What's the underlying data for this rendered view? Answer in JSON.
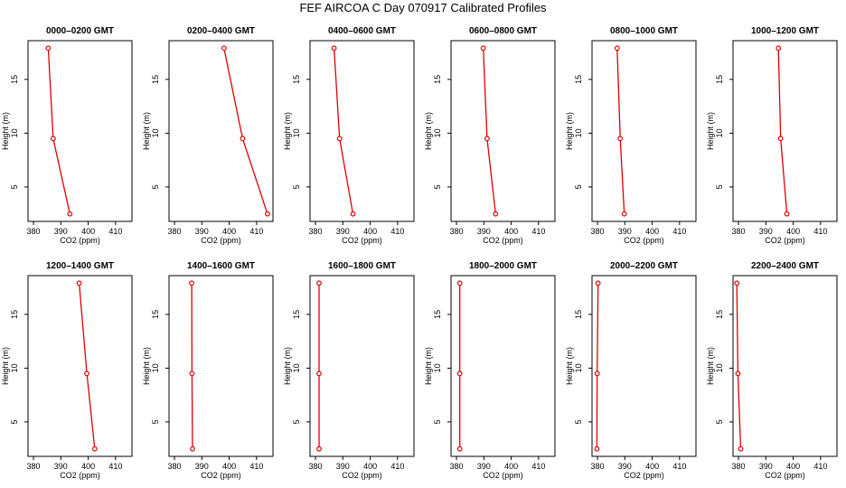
{
  "figure": {
    "title": "FEF AIRCOA C  Day 070917  Calibrated Profiles"
  },
  "colors": {
    "line": "#e00000",
    "axis": "#000000"
  },
  "chart_data": {
    "type": "line",
    "xlabel": "CO2 (ppm)",
    "ylabel": "Height (m)",
    "xlim": [
      378,
      416
    ],
    "ylim": [
      1.8,
      18.6
    ],
    "xticks": [
      380,
      390,
      400,
      410
    ],
    "yticks": [
      5,
      10,
      15
    ],
    "heights": [
      2.5,
      9.5,
      17.9
    ],
    "panels": [
      {
        "title": "0000–0200 GMT",
        "co2": [
          393.3,
          387.2,
          385.4
        ]
      },
      {
        "title": "0200–0400 GMT",
        "co2": [
          414.0,
          404.9,
          398.1
        ]
      },
      {
        "title": "0400–0600 GMT",
        "co2": [
          393.7,
          388.8,
          386.8
        ]
      },
      {
        "title": "0600–0800 GMT",
        "co2": [
          394.3,
          391.2,
          389.8
        ]
      },
      {
        "title": "0800–1000 GMT",
        "co2": [
          389.8,
          388.3,
          387.2
        ]
      },
      {
        "title": "1000–1200 GMT",
        "co2": [
          397.7,
          395.4,
          394.6
        ]
      },
      {
        "title": "1200–1400 GMT",
        "co2": [
          402.4,
          399.5,
          396.7
        ]
      },
      {
        "title": "1400–1600 GMT",
        "co2": [
          386.6,
          386.4,
          386.3
        ]
      },
      {
        "title": "1600–1800 GMT",
        "co2": [
          381.3,
          381.3,
          381.3
        ]
      },
      {
        "title": "1800–2000 GMT",
        "co2": [
          381.2,
          381.2,
          381.2
        ]
      },
      {
        "title": "2000–2200 GMT",
        "co2": [
          379.8,
          379.9,
          380.2
        ]
      },
      {
        "title": "2200–2400 GMT",
        "co2": [
          380.8,
          379.8,
          379.4
        ]
      }
    ]
  }
}
